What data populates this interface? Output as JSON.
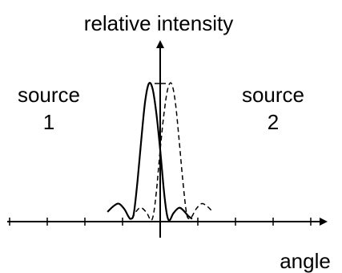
{
  "chart_data": {
    "type": "line",
    "ylabel": "relative intensity",
    "xlabel": "angle",
    "xlim": [
      -4,
      4
    ],
    "ylim": [
      0,
      1
    ],
    "annotations": [
      {
        "lines": [
          "source",
          "1"
        ]
      },
      {
        "lines": [
          "source",
          "2"
        ]
      }
    ],
    "series": [
      {
        "line_style": "solid",
        "color": "#000000",
        "points": [
          [
            -1.4,
            0.07
          ],
          [
            -1.25,
            0.11
          ],
          [
            -1.1,
            0.13
          ],
          [
            -0.95,
            0.09
          ],
          [
            -0.85,
            0.04
          ],
          [
            -0.78,
            0.02
          ],
          [
            -0.7,
            0.06
          ],
          [
            -0.6,
            0.3
          ],
          [
            -0.5,
            0.6
          ],
          [
            -0.4,
            0.87
          ],
          [
            -0.3,
            1.0
          ],
          [
            -0.2,
            0.96
          ],
          [
            -0.1,
            0.78
          ],
          [
            0.0,
            0.52
          ],
          [
            0.1,
            0.22
          ],
          [
            0.18,
            0.05
          ],
          [
            0.25,
            0.01
          ],
          [
            0.35,
            0.06
          ],
          [
            0.5,
            0.1
          ],
          [
            0.62,
            0.08
          ],
          [
            0.75,
            0.04
          ],
          [
            0.85,
            0.02
          ]
        ]
      },
      {
        "line_style": "dashed",
        "color": "#000000",
        "points": [
          [
            -0.75,
            0.02
          ],
          [
            -0.62,
            0.08
          ],
          [
            -0.5,
            0.1
          ],
          [
            -0.35,
            0.06
          ],
          [
            -0.25,
            0.01
          ],
          [
            -0.18,
            0.05
          ],
          [
            -0.1,
            0.22
          ],
          [
            0.0,
            0.52
          ],
          [
            0.1,
            0.78
          ],
          [
            0.2,
            0.96
          ],
          [
            0.3,
            1.0
          ],
          [
            0.4,
            0.87
          ],
          [
            0.5,
            0.6
          ],
          [
            0.6,
            0.3
          ],
          [
            0.7,
            0.06
          ],
          [
            0.78,
            0.02
          ],
          [
            0.85,
            0.04
          ],
          [
            0.95,
            0.09
          ],
          [
            1.1,
            0.13
          ],
          [
            1.25,
            0.11
          ],
          [
            1.4,
            0.07
          ]
        ]
      }
    ],
    "grid": false,
    "legend": "none"
  }
}
